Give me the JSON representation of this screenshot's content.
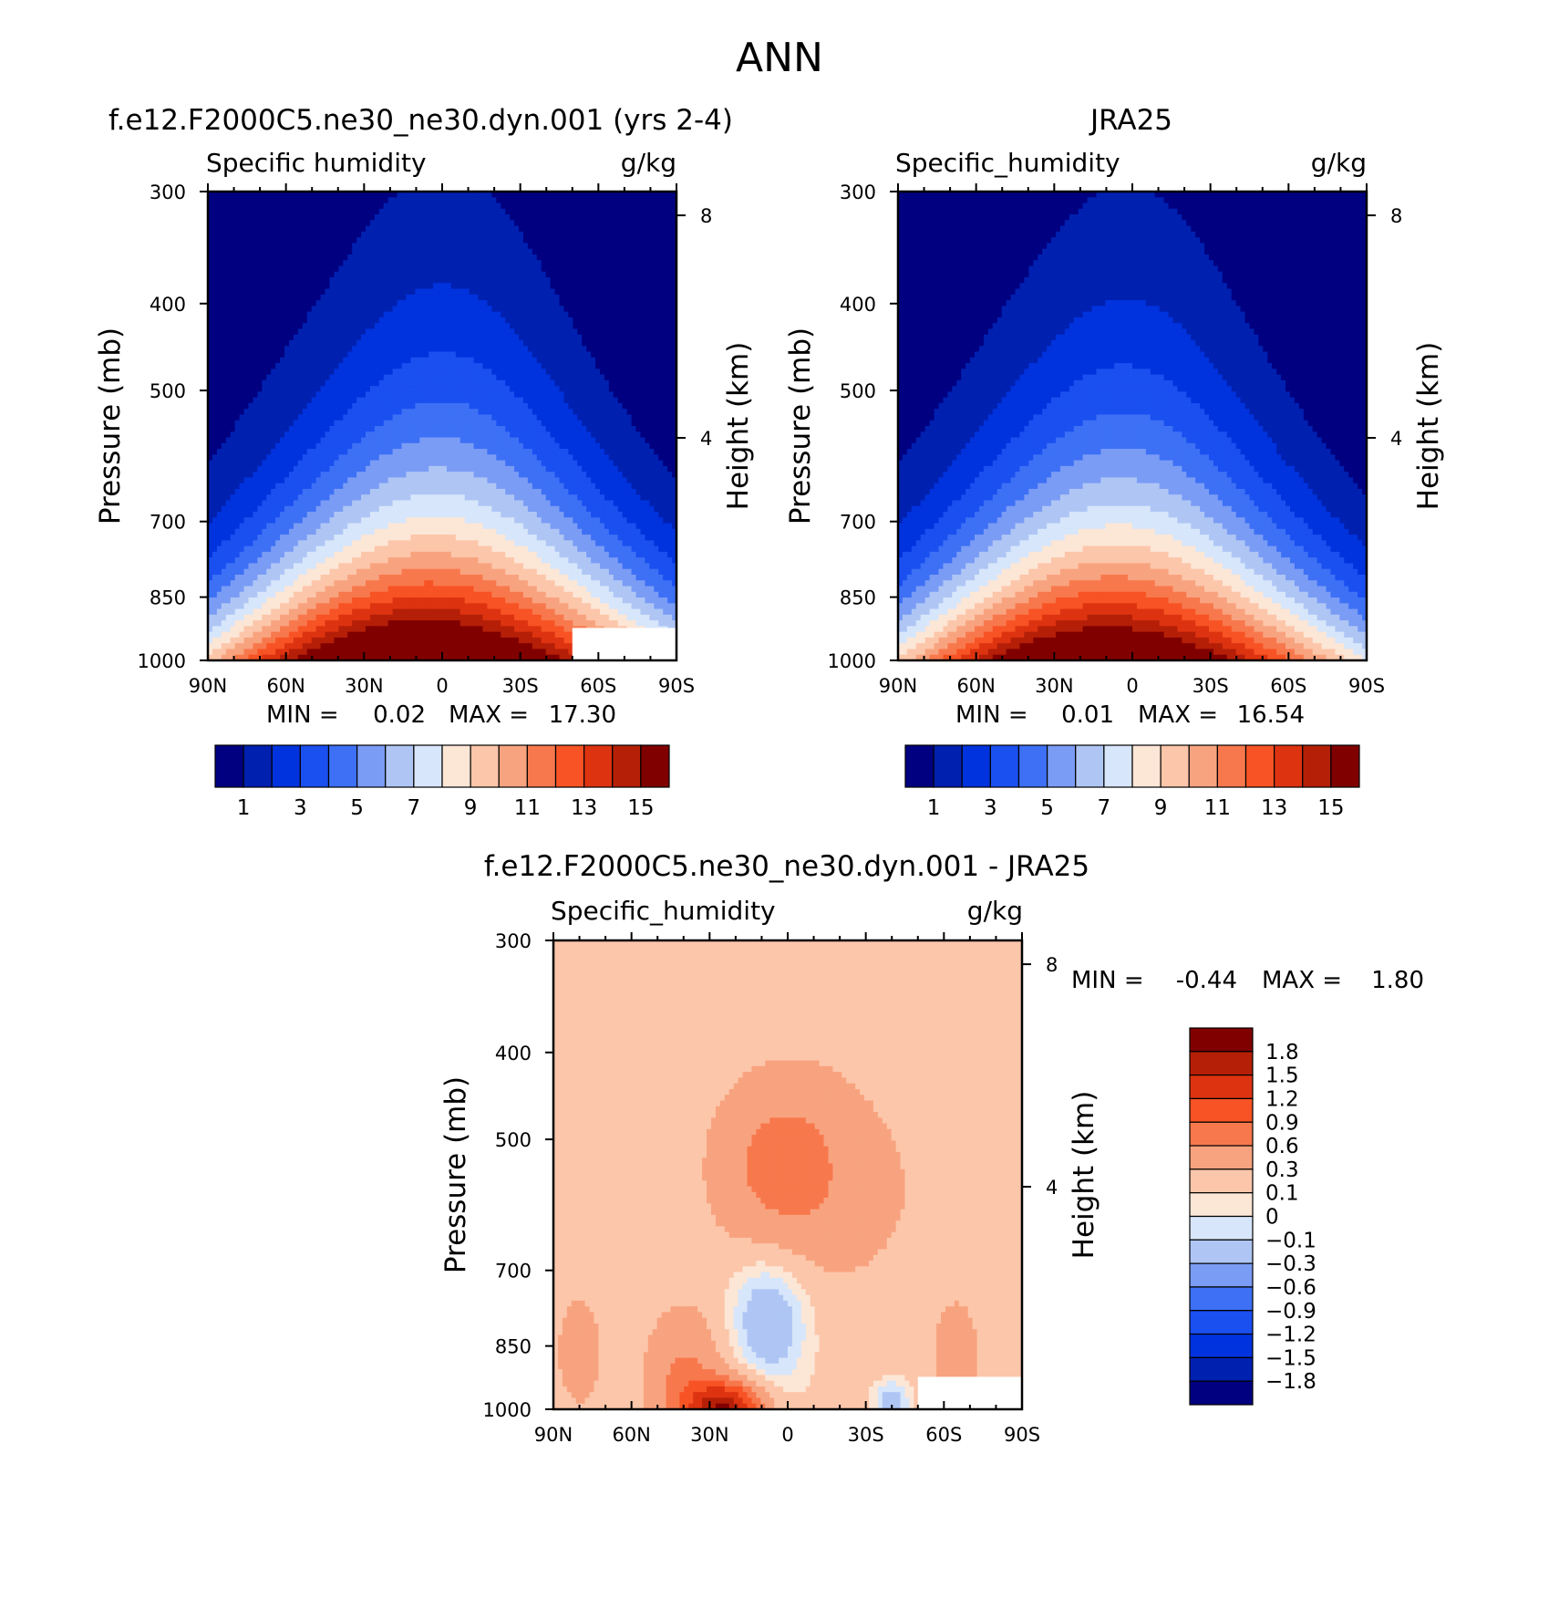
{
  "figure": {
    "title": "ANN"
  },
  "chart_data": [
    {
      "type": "heatmap",
      "title": "f.e12.F2000C5.ne30_ne30.dyn.001 (yrs 2-4)",
      "variable": "Specific humidity",
      "units": "g/kg",
      "ylabel": "Pressure (mb)",
      "y2label": "Height (km)",
      "xticks": [
        "90N",
        "60N",
        "30N",
        "0",
        "30S",
        "60S",
        "90S"
      ],
      "x_range": [
        90,
        -90
      ],
      "yticks": [
        300,
        400,
        500,
        700,
        850,
        1000
      ],
      "y_range": [
        300,
        1000
      ],
      "y_scale": "log",
      "y2ticks": [
        8,
        4
      ],
      "stats": {
        "min_label": "MIN =",
        "min": "0.02",
        "max_label": "MAX =",
        "max": "17.30"
      },
      "levels": [
        1,
        2,
        3,
        4,
        5,
        6,
        7,
        8,
        9,
        10,
        11,
        12,
        13,
        14,
        15
      ],
      "colorbar_labels": [
        "1",
        "3",
        "5",
        "7",
        "9",
        "11",
        "13",
        "15"
      ],
      "peak": {
        "lat": 0,
        "plev": 1000,
        "value": 17.3
      },
      "missing_region": {
        "lat_min": -90,
        "lat_max": -50,
        "plev_min": 920,
        "plev_max": 1000
      },
      "colors": [
        "#000080",
        "#0020b0",
        "#0033dd",
        "#1a4ff0",
        "#3d70f5",
        "#7a9cf5",
        "#afc6f5",
        "#d7e6fa",
        "#fce6d6",
        "#fcc6aa",
        "#f8a37f",
        "#f8784d",
        "#f75324",
        "#dd3310",
        "#b51f08",
        "#800000"
      ]
    },
    {
      "type": "heatmap",
      "title": "JRA25",
      "variable": "Specific_humidity",
      "units": "g/kg",
      "ylabel": "Pressure (mb)",
      "y2label": "Height (km)",
      "xticks": [
        "90N",
        "60N",
        "30N",
        "0",
        "30S",
        "60S",
        "90S"
      ],
      "x_range": [
        90,
        -90
      ],
      "yticks": [
        300,
        400,
        500,
        700,
        850,
        1000
      ],
      "y_range": [
        300,
        1000
      ],
      "y_scale": "log",
      "y2ticks": [
        8,
        4
      ],
      "stats": {
        "min_label": "MIN =",
        "min": "0.01",
        "max_label": "MAX =",
        "max": "16.54"
      },
      "levels": [
        1,
        2,
        3,
        4,
        5,
        6,
        7,
        8,
        9,
        10,
        11,
        12,
        13,
        14,
        15
      ],
      "colorbar_labels": [
        "1",
        "3",
        "5",
        "7",
        "9",
        "11",
        "13",
        "15"
      ],
      "peak": {
        "lat": 0,
        "plev": 1000,
        "value": 16.54
      },
      "colors": [
        "#000080",
        "#0020b0",
        "#0033dd",
        "#1a4ff0",
        "#3d70f5",
        "#7a9cf5",
        "#afc6f5",
        "#d7e6fa",
        "#fce6d6",
        "#fcc6aa",
        "#f8a37f",
        "#f8784d",
        "#f75324",
        "#dd3310",
        "#b51f08",
        "#800000"
      ]
    },
    {
      "type": "heatmap",
      "title": "f.e12.F2000C5.ne30_ne30.dyn.001 - JRA25",
      "variable": "Specific_humidity",
      "units": "g/kg",
      "ylabel": "Pressure (mb)",
      "y2label": "Height (km)",
      "xticks": [
        "90N",
        "60N",
        "30N",
        "0",
        "30S",
        "60S",
        "90S"
      ],
      "x_range": [
        90,
        -90
      ],
      "yticks": [
        300,
        400,
        500,
        700,
        850,
        1000
      ],
      "y_range": [
        300,
        1000
      ],
      "y_scale": "log",
      "y2ticks": [
        8,
        4
      ],
      "stats": {
        "min_label": "MIN =",
        "min": "-0.44",
        "max_label": "MAX =",
        "max": "1.80"
      },
      "levels": [
        -1.8,
        -1.5,
        -1.2,
        -0.9,
        -0.6,
        -0.3,
        -0.1,
        0,
        0.1,
        0.3,
        0.6,
        0.9,
        1.2,
        1.5,
        1.8
      ],
      "colorbar_labels": [
        "1.8",
        "1.5",
        "1.2",
        "0.9",
        "0.6",
        "0.3",
        "0.1",
        "0",
        "-0.1",
        "-0.3",
        "-0.6",
        "-0.9",
        "-1.2",
        "-1.5",
        "-1.8"
      ],
      "missing_region": {
        "lat_min": -90,
        "lat_max": -50,
        "plev_min": 920,
        "plev_max": 1000
      },
      "colors": [
        "#000080",
        "#0020b0",
        "#0033dd",
        "#1a4ff0",
        "#3d70f5",
        "#7a9cf5",
        "#afc6f5",
        "#d7e6fa",
        "#fce6d6",
        "#fcc6aa",
        "#f8a37f",
        "#f8784d",
        "#f75324",
        "#dd3310",
        "#b51f08",
        "#800000"
      ]
    }
  ]
}
